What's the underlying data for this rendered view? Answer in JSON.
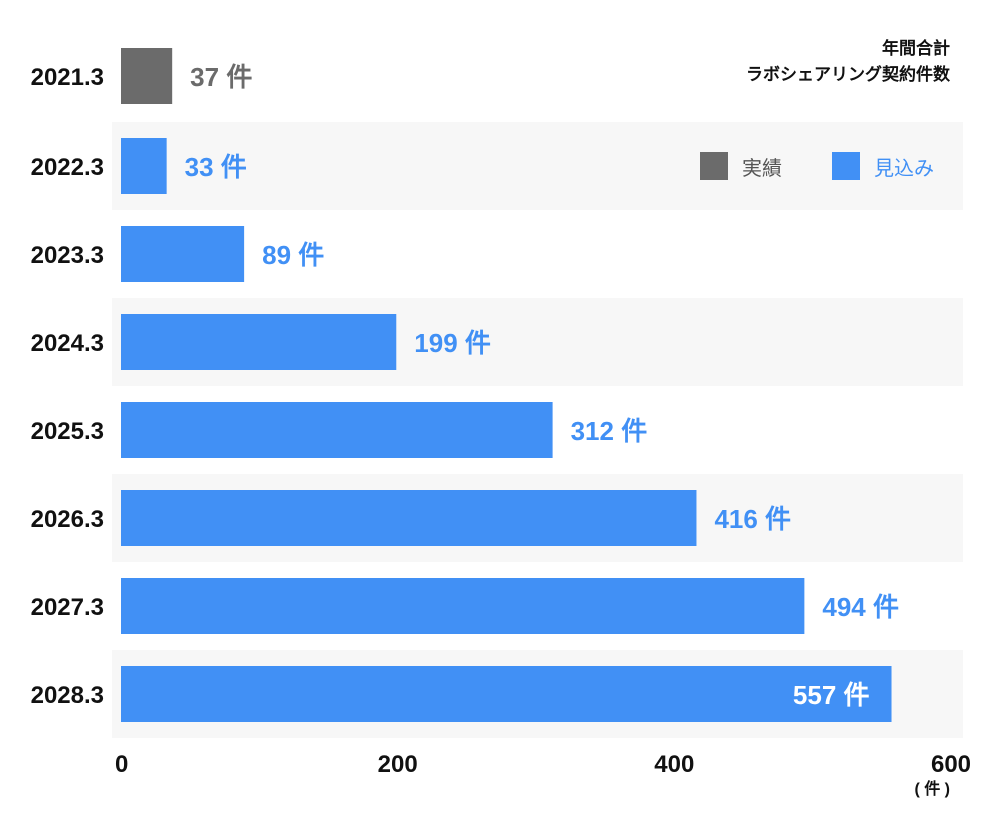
{
  "chart_data": {
    "type": "bar",
    "orientation": "horizontal",
    "title": "年間合計\nラボシェアリング契約件数",
    "title_lines": [
      "年間合計",
      "ラボシェアリング契約件数"
    ],
    "categories": [
      "2021.3",
      "2022.3",
      "2023.3",
      "2024.3",
      "2025.3",
      "2026.3",
      "2027.3",
      "2028.3"
    ],
    "values": [
      37,
      33,
      89,
      199,
      312,
      416,
      494,
      557
    ],
    "value_labels": [
      "37 件",
      "33 件",
      "89 件",
      "199 件",
      "312 件",
      "416 件",
      "494 件",
      "557 件"
    ],
    "series_type": [
      "actual",
      "forecast",
      "forecast",
      "forecast",
      "forecast",
      "forecast",
      "forecast",
      "forecast"
    ],
    "legend": [
      {
        "name": "実績",
        "key": "actual",
        "color": "#6b6b6b"
      },
      {
        "name": "見込み",
        "key": "forecast",
        "color": "#4190f5"
      }
    ],
    "legend_position": "top-right",
    "xlim": [
      0,
      600
    ],
    "xticks": [
      0,
      200,
      400,
      600
    ],
    "xtick_labels": [
      "0",
      "200",
      "400",
      "600"
    ],
    "xunit": "( 件 )",
    "xlabel": "",
    "ylabel": "",
    "grid": false,
    "colors": {
      "actual": "#6b6b6b",
      "forecast": "#4190f5",
      "band": "#f7f7f7"
    }
  }
}
